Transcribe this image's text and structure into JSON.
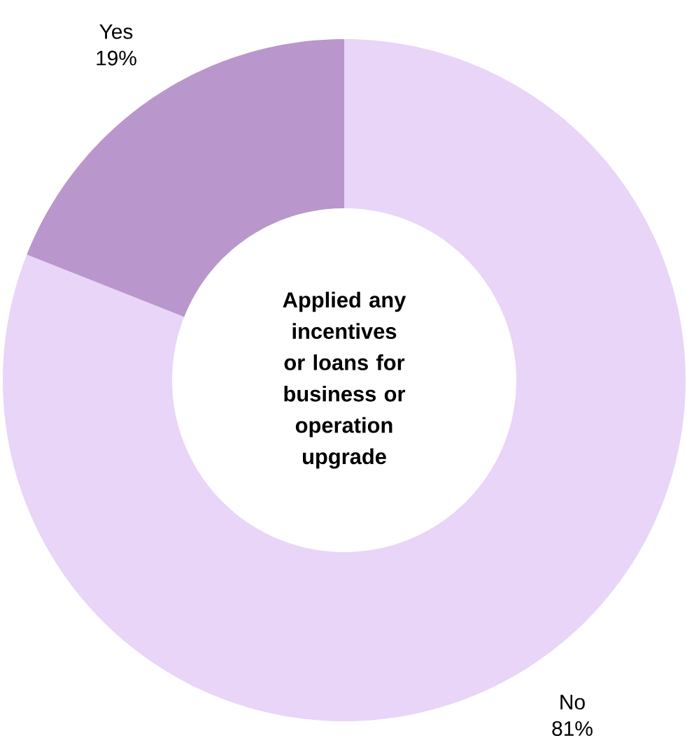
{
  "chart_data": {
    "type": "donut",
    "title": "Applied any incentives or loans for business or operation upgrade",
    "categories": [
      "No",
      "Yes"
    ],
    "values": [
      81,
      19
    ],
    "value_labels": [
      "81%",
      "19%"
    ],
    "colors": [
      "#e8d5f8",
      "#b996cb"
    ]
  }
}
